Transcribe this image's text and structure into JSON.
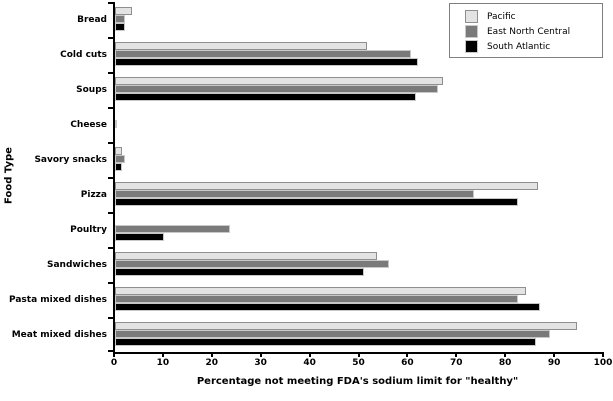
{
  "chart_data": {
    "type": "bar",
    "orientation": "horizontal",
    "title": "",
    "xlabel": "Percentage not meeting FDA's sodium limit for \"healthy\"",
    "ylabel": "Food Type",
    "xlim": [
      0,
      100
    ],
    "xticks": [
      0,
      10,
      20,
      30,
      40,
      50,
      60,
      70,
      80,
      90,
      100
    ],
    "grid": false,
    "legend_position": "top-right",
    "categories": [
      "Bread",
      "Cold cuts",
      "Soups",
      "Cheese",
      "Savory snacks",
      "Pizza",
      "Poultry",
      "Sandwiches",
      "Pasta mixed dishes",
      "Meat mixed dishes"
    ],
    "series": [
      {
        "name": "Pacific",
        "color": "#e3e3e3",
        "border_color": "#8f8f8f",
        "values": [
          3.5,
          51.5,
          67,
          0,
          1.5,
          86.5,
          0,
          53.5,
          84,
          94.5
        ]
      },
      {
        "name": "East North Central",
        "color": "#7a7a7a",
        "border_color": "#c8c8c8",
        "values": [
          2,
          60.5,
          66,
          0.5,
          2,
          73.5,
          23.5,
          56,
          82.5,
          89
        ]
      },
      {
        "name": "South Atlantic",
        "color": "#000000",
        "border_color": "#c8c8c8",
        "values": [
          2,
          62,
          61.5,
          0,
          1.5,
          82.5,
          10,
          51,
          87,
          86
        ]
      }
    ]
  }
}
